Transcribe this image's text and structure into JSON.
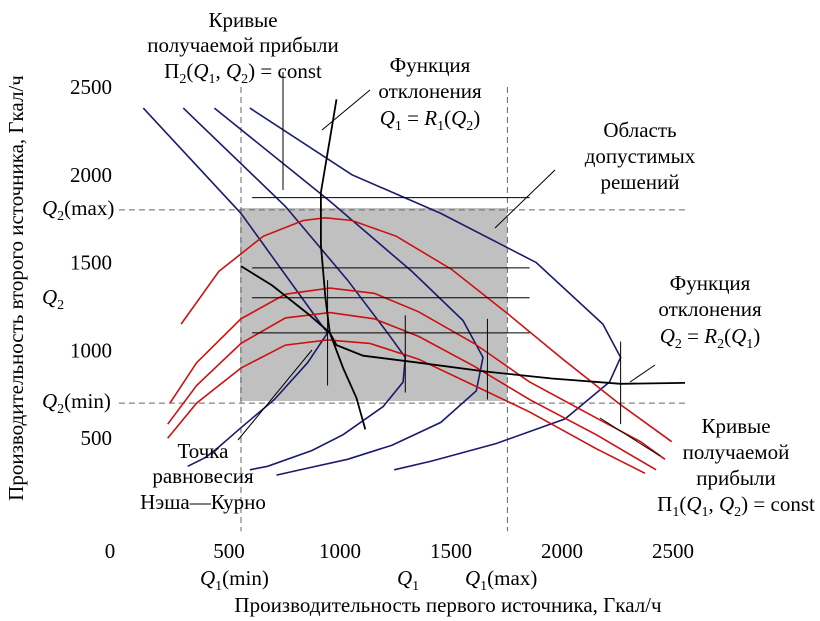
{
  "chart_data": {
    "type": "line",
    "title": "",
    "xlabel": "Производительность первого источника, Гкал/ч",
    "ylabel": "Производительность второго источника, Гкал/ч",
    "xlim": [
      0,
      2500
    ],
    "ylim": [
      0,
      2500
    ],
    "x_ticks": [
      "0",
      "500",
      "1000",
      "1500",
      "2000",
      "2500"
    ],
    "y_ticks": [
      "500",
      "1000",
      "1500",
      "2000",
      "2500"
    ],
    "region": {
      "x": [
        500,
        1700
      ],
      "y": [
        700,
        1800
      ],
      "color": "#c0c0c0"
    },
    "reference_lines": {
      "x": [
        500,
        1700
      ],
      "y": [
        700,
        1800
      ],
      "x_labels": {
        "min": "Q1(min)",
        "max": "Q1(max)",
        "sym": "Q1"
      },
      "y_labels": {
        "min": "Q2(min)",
        "max": "Q2(max)",
        "sym": "Q2"
      }
    },
    "colors": {
      "navy": "#1a1a6e",
      "red": "#cc1111",
      "black": "#000000",
      "region": "#c0c0c0",
      "ref": "#666666"
    },
    "series": [
      {
        "group": "navy",
        "points": [
          [
            60,
            2380
          ],
          [
            500,
            1780
          ],
          [
            860,
            1150
          ],
          [
            890,
            1100
          ],
          [
            800,
            930
          ],
          [
            650,
            720
          ],
          [
            500,
            560
          ],
          [
            400,
            450
          ],
          [
            340,
            390
          ],
          [
            260,
            340
          ]
        ]
      },
      {
        "group": "navy",
        "points": [
          [
            240,
            2380
          ],
          [
            700,
            1820
          ],
          [
            980,
            1400
          ],
          [
            1160,
            1100
          ],
          [
            1240,
            960
          ],
          [
            1230,
            820
          ],
          [
            1140,
            680
          ],
          [
            960,
            520
          ],
          [
            820,
            430
          ],
          [
            620,
            340
          ],
          [
            540,
            320
          ]
        ]
      },
      {
        "group": "navy",
        "points": [
          [
            380,
            2380
          ],
          [
            900,
            1850
          ],
          [
            1270,
            1450
          ],
          [
            1500,
            1170
          ],
          [
            1590,
            960
          ],
          [
            1560,
            770
          ],
          [
            1400,
            590
          ],
          [
            1180,
            460
          ],
          [
            980,
            380
          ],
          [
            800,
            330
          ],
          [
            660,
            290
          ]
        ]
      },
      {
        "group": "navy",
        "points": [
          [
            540,
            2380
          ],
          [
            1000,
            2000
          ],
          [
            1400,
            1780
          ],
          [
            1830,
            1500
          ],
          [
            2130,
            1150
          ],
          [
            2210,
            960
          ],
          [
            2160,
            820
          ],
          [
            1960,
            610
          ],
          [
            1650,
            470
          ],
          [
            1360,
            370
          ],
          [
            1190,
            320
          ]
        ]
      },
      {
        "group": "red",
        "points": [
          [
            230,
            1150
          ],
          [
            400,
            1450
          ],
          [
            600,
            1650
          ],
          [
            780,
            1740
          ],
          [
            880,
            1755
          ],
          [
            1000,
            1740
          ],
          [
            1200,
            1650
          ],
          [
            1450,
            1460
          ],
          [
            1700,
            1210
          ],
          [
            1950,
            950
          ],
          [
            2200,
            700
          ],
          [
            2440,
            480
          ]
        ]
      },
      {
        "group": "red",
        "points": [
          [
            180,
            700
          ],
          [
            300,
            930
          ],
          [
            500,
            1180
          ],
          [
            700,
            1320
          ],
          [
            900,
            1355
          ],
          [
            1100,
            1325
          ],
          [
            1300,
            1220
          ],
          [
            1550,
            1040
          ],
          [
            1800,
            820
          ],
          [
            2050,
            650
          ],
          [
            2300,
            480
          ],
          [
            2410,
            380
          ]
        ]
      },
      {
        "group": "red",
        "points": [
          [
            170,
            580
          ],
          [
            300,
            800
          ],
          [
            500,
            1040
          ],
          [
            700,
            1185
          ],
          [
            900,
            1215
          ],
          [
            1100,
            1180
          ],
          [
            1300,
            1080
          ],
          [
            1550,
            910
          ],
          [
            1800,
            720
          ],
          [
            2100,
            520
          ],
          [
            2370,
            320
          ]
        ]
      },
      {
        "group": "red",
        "points": [
          [
            170,
            500
          ],
          [
            300,
            700
          ],
          [
            500,
            900
          ],
          [
            700,
            1030
          ],
          [
            890,
            1060
          ],
          [
            1080,
            1040
          ],
          [
            1300,
            950
          ],
          [
            1550,
            800
          ],
          [
            1800,
            650
          ],
          [
            2100,
            440
          ],
          [
            2320,
            300
          ]
        ]
      },
      {
        "group": "black",
        "points": [
          [
            930,
            2430
          ],
          [
            900,
            2200
          ],
          [
            860,
            1900
          ],
          [
            860,
            1600
          ],
          [
            880,
            1300
          ],
          [
            900,
            1100
          ],
          [
            930,
            1030
          ],
          [
            1050,
            970
          ],
          [
            1300,
            930
          ],
          [
            1600,
            880
          ],
          [
            1900,
            840
          ],
          [
            2210,
            810
          ],
          [
            2500,
            815
          ]
        ]
      },
      {
        "group": "black",
        "points": [
          [
            500,
            1480
          ],
          [
            640,
            1370
          ],
          [
            800,
            1210
          ],
          [
            900,
            1100
          ],
          [
            960,
            900
          ],
          [
            1020,
            730
          ],
          [
            1060,
            550
          ]
        ]
      }
    ],
    "markers": {
      "h": [
        [
          550,
          1800,
          1870
        ],
        [
          550,
          1800,
          1470
        ],
        [
          550,
          1800,
          1300
        ],
        [
          550,
          1800,
          1100
        ]
      ],
      "v": [
        [
          890,
          800,
          1400
        ],
        [
          1240,
          760,
          1200
        ],
        [
          1610,
          720,
          1180
        ],
        [
          2210,
          580,
          1050
        ]
      ]
    },
    "annotations": [
      {
        "lines": [
          "Кривые",
          "получаемой прибыли",
          "П2(Q1, Q2) = const"
        ]
      },
      {
        "lines": [
          "Функция",
          "отклонения",
          "Q1 = R1(Q2)"
        ]
      },
      {
        "lines": [
          "Область",
          "допустимых",
          "решений"
        ]
      },
      {
        "lines": [
          "Функция",
          "отклонения",
          "Q2 = R2(Q1)"
        ]
      },
      {
        "lines": [
          "Точка",
          "равновесия",
          "Нэша—Курно"
        ]
      },
      {
        "lines": [
          "Кривые",
          "получаемой",
          "прибыли",
          "П1(Q1, Q2) = const"
        ]
      }
    ]
  }
}
